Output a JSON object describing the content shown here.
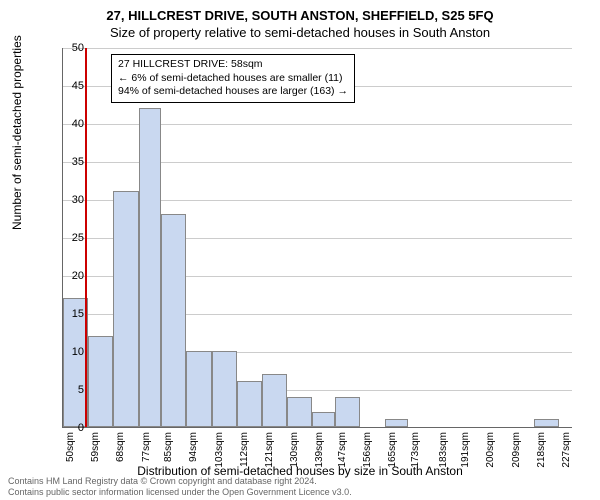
{
  "titles": {
    "main": "27, HILLCREST DRIVE, SOUTH ANSTON, SHEFFIELD, S25 5FQ",
    "sub": "Size of property relative to semi-detached houses in South Anston"
  },
  "axes": {
    "ylabel": "Number of semi-detached properties",
    "xlabel": "Distribution of semi-detached houses by size in South Anston"
  },
  "chart": {
    "type": "histogram",
    "ylim": [
      0,
      50
    ],
    "ytick_step": 5,
    "yticks": [
      0,
      5,
      10,
      15,
      20,
      25,
      30,
      35,
      40,
      45,
      50
    ],
    "xlim": [
      50,
      232
    ],
    "xtick_step": 9,
    "xtick_start": 50,
    "xtick_unit": "sqm",
    "xticks": [
      50,
      59,
      68,
      77,
      85,
      94,
      103,
      112,
      121,
      130,
      139,
      147,
      156,
      165,
      173,
      183,
      191,
      200,
      209,
      218,
      227
    ],
    "bar_color": "#c9d8f0",
    "bar_border_color": "#888888",
    "grid_color": "#cccccc",
    "axis_color": "#666666",
    "reference_line_color": "#cc0000",
    "reference_value": 58,
    "bars": [
      {
        "x0": 50,
        "x1": 59,
        "count": 17
      },
      {
        "x0": 59,
        "x1": 68,
        "count": 12
      },
      {
        "x0": 68,
        "x1": 77,
        "count": 31
      },
      {
        "x0": 77,
        "x1": 85,
        "count": 42
      },
      {
        "x0": 85,
        "x1": 94,
        "count": 28
      },
      {
        "x0": 94,
        "x1": 103,
        "count": 10
      },
      {
        "x0": 103,
        "x1": 112,
        "count": 10
      },
      {
        "x0": 112,
        "x1": 121,
        "count": 6
      },
      {
        "x0": 121,
        "x1": 130,
        "count": 7
      },
      {
        "x0": 130,
        "x1": 139,
        "count": 4
      },
      {
        "x0": 139,
        "x1": 147,
        "count": 2
      },
      {
        "x0": 147,
        "x1": 156,
        "count": 4
      },
      {
        "x0": 156,
        "x1": 165,
        "count": 0
      },
      {
        "x0": 165,
        "x1": 173,
        "count": 1
      },
      {
        "x0": 173,
        "x1": 183,
        "count": 0
      },
      {
        "x0": 183,
        "x1": 191,
        "count": 0
      },
      {
        "x0": 191,
        "x1": 200,
        "count": 0
      },
      {
        "x0": 200,
        "x1": 209,
        "count": 0
      },
      {
        "x0": 209,
        "x1": 218,
        "count": 0
      },
      {
        "x0": 218,
        "x1": 227,
        "count": 1
      }
    ]
  },
  "info_box": {
    "line1": "27 HILLCREST DRIVE: 58sqm",
    "line2": "← 6% of semi-detached houses are smaller (11)",
    "line3": "94% of semi-detached houses are larger (163) →"
  },
  "footer": {
    "line1": "Contains HM Land Registry data © Crown copyright and database right 2024.",
    "line2": "Contains public sector information licensed under the Open Government Licence v3.0."
  }
}
